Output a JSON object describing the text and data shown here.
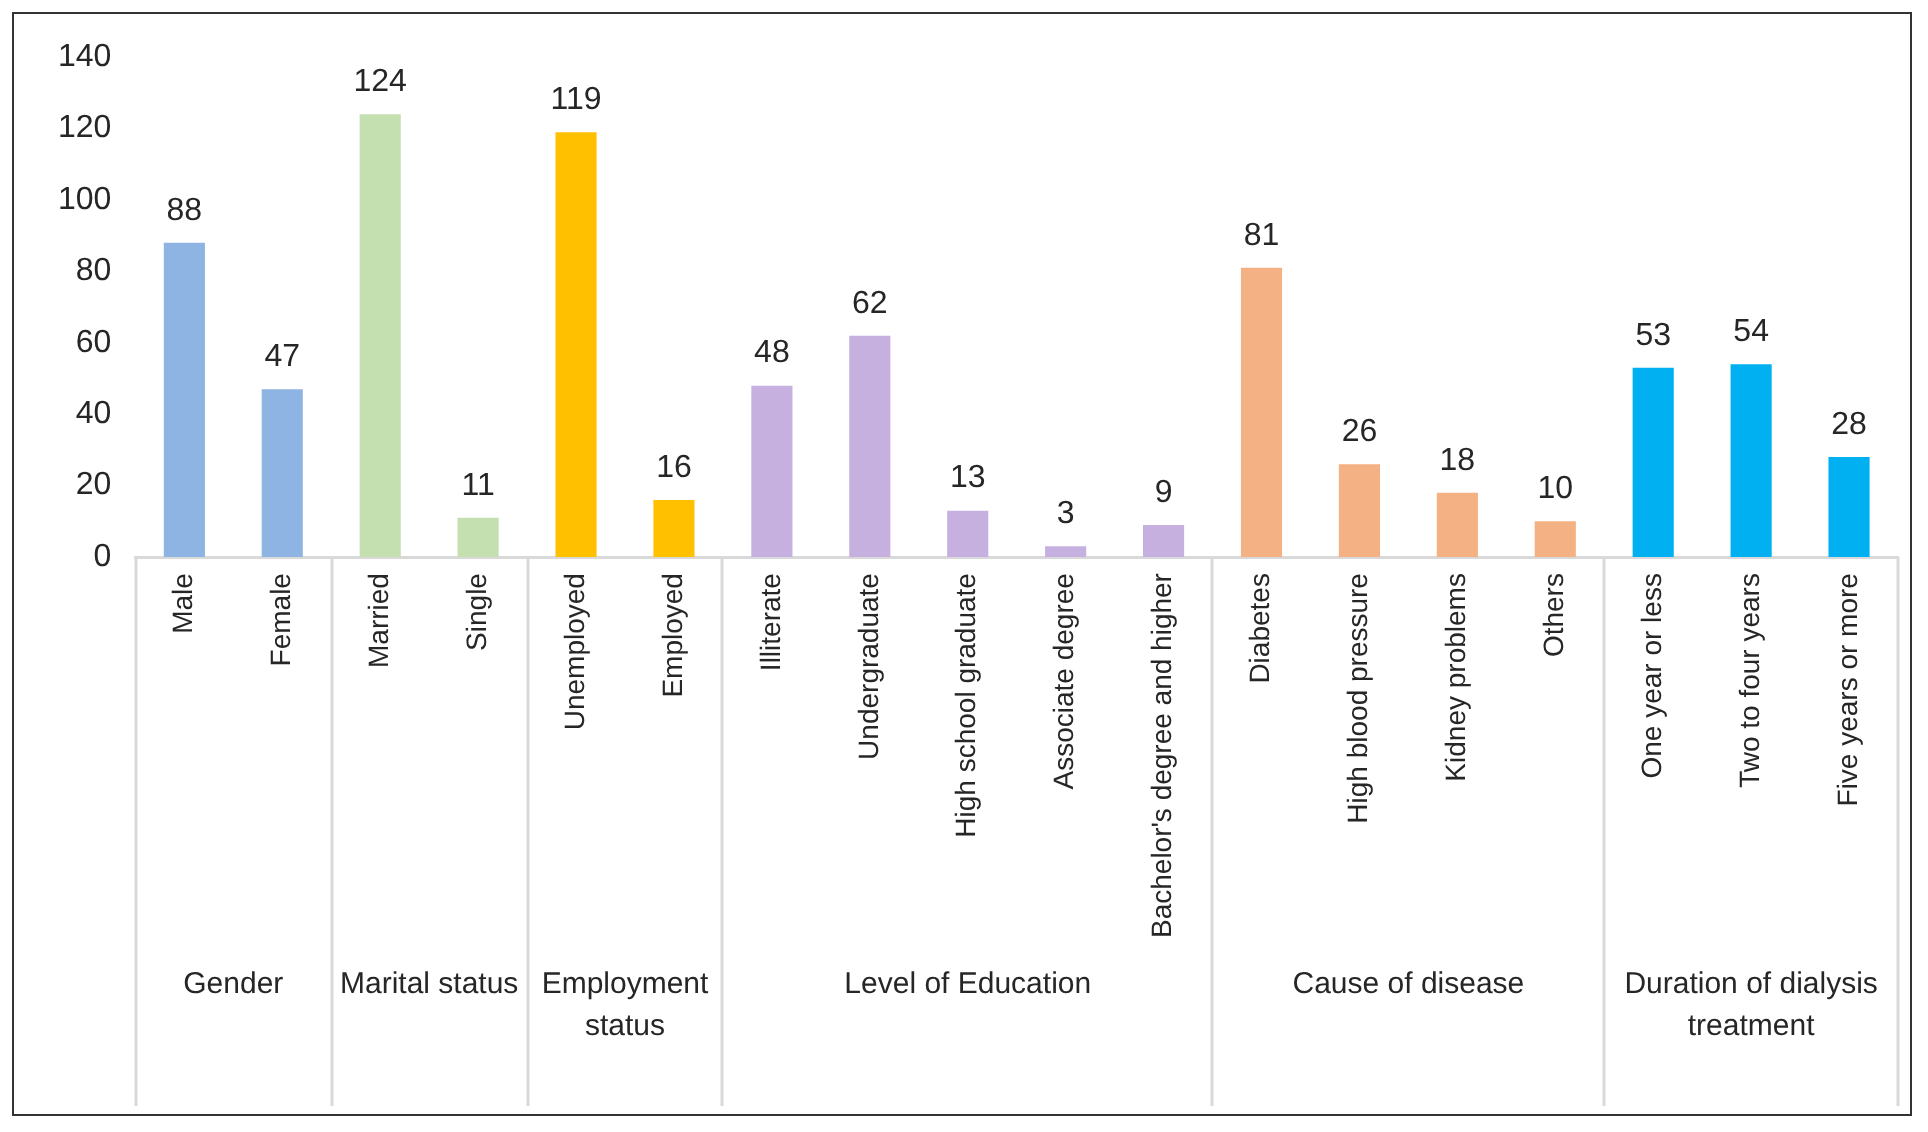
{
  "chart_data": {
    "type": "bar",
    "categories": [
      "Male",
      "Female",
      "Married",
      "Single",
      "Unemployed",
      "Employed",
      "Illiterate",
      "Undergraduate",
      "High school graduate",
      "Associate degree",
      "Bachelor's degree and higher",
      "Diabetes",
      "High blood pressure",
      "Kidney problems",
      "Others",
      "One year or less",
      "Two to four years",
      "Five years or more"
    ],
    "values": [
      88,
      47,
      124,
      11,
      119,
      16,
      48,
      62,
      13,
      3,
      9,
      81,
      26,
      18,
      10,
      53,
      54,
      28
    ],
    "colors": [
      "#8eb4e3",
      "#8eb4e3",
      "#c4dfb0",
      "#c4dfb0",
      "#ffc000",
      "#ffc000",
      "#c5b0e0",
      "#c5b0e0",
      "#c5b0e0",
      "#c5b0e0",
      "#c5b0e0",
      "#f4b183",
      "#f4b183",
      "#f4b183",
      "#f4b183",
      "#00b0f0",
      "#00b0f0",
      "#00b0f0"
    ],
    "annotations": [
      "Gender",
      "Marital status",
      "Employment status",
      "Level of Education",
      "Cause of disease",
      "Duration of dialysis treatment"
    ],
    "ylim": [
      0,
      140
    ],
    "yticks": [
      0,
      20,
      40,
      60,
      80,
      100,
      120,
      140
    ],
    "grid": false,
    "legend": false,
    "data_labels": true
  }
}
